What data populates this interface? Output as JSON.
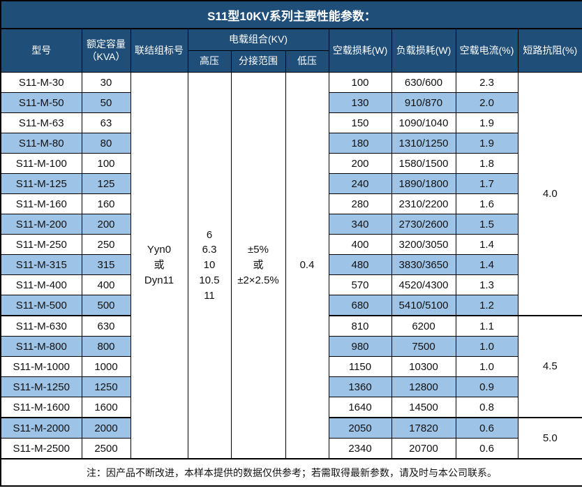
{
  "title": "S11型10KV系列主要性能参数：",
  "header": {
    "model": "型号",
    "capacity_line1": "额定容量",
    "capacity_line2": "（KVA）",
    "vector_group": "联结组标号",
    "voltage_combo": "电载组合(KV)",
    "hv": "高压",
    "tap_range": "分接范围",
    "lv": "低压",
    "no_load_loss": "空载损耗(W)",
    "load_loss": "负载损耗(W)",
    "no_load_current": "空载电流(%)",
    "impedance": "短路抗阻(%)"
  },
  "merged": {
    "vector_group_lines": [
      "Yyn0",
      "或",
      "Dyn11"
    ],
    "hv_lines": [
      "6",
      "6.3",
      "10",
      "10.5",
      "11"
    ],
    "tap_range_lines": [
      "±5%",
      "或",
      "±2×2.5%"
    ],
    "lv_value": "0.4"
  },
  "rows": [
    {
      "model": "S11-M-30",
      "capacity": "30",
      "no_load_loss": "100",
      "load_loss": "630/600",
      "no_load_current": "2.3"
    },
    {
      "model": "S11-M-50",
      "capacity": "50",
      "no_load_loss": "130",
      "load_loss": "910/870",
      "no_load_current": "2.0"
    },
    {
      "model": "S11-M-63",
      "capacity": "63",
      "no_load_loss": "150",
      "load_loss": "1090/1040",
      "no_load_current": "1.9"
    },
    {
      "model": "S11-M-80",
      "capacity": "80",
      "no_load_loss": "180",
      "load_loss": "1310/1250",
      "no_load_current": "1.9"
    },
    {
      "model": "S11-M-100",
      "capacity": "100",
      "no_load_loss": "200",
      "load_loss": "1580/1500",
      "no_load_current": "1.8"
    },
    {
      "model": "S11-M-125",
      "capacity": "125",
      "no_load_loss": "240",
      "load_loss": "1890/1800",
      "no_load_current": "1.7"
    },
    {
      "model": "S11-M-160",
      "capacity": "160",
      "no_load_loss": "280",
      "load_loss": "2310/2200",
      "no_load_current": "1.6"
    },
    {
      "model": "S11-M-200",
      "capacity": "200",
      "no_load_loss": "340",
      "load_loss": "2730/2600",
      "no_load_current": "1.5"
    },
    {
      "model": "S11-M-250",
      "capacity": "250",
      "no_load_loss": "400",
      "load_loss": "3200/3050",
      "no_load_current": "1.4"
    },
    {
      "model": "S11-M-315",
      "capacity": "315",
      "no_load_loss": "480",
      "load_loss": "3830/3650",
      "no_load_current": "1.4"
    },
    {
      "model": "S11-M-400",
      "capacity": "400",
      "no_load_loss": "570",
      "load_loss": "4520/4300",
      "no_load_current": "1.3"
    },
    {
      "model": "S11-M-500",
      "capacity": "500",
      "no_load_loss": "680",
      "load_loss": "5410/5100",
      "no_load_current": "1.2"
    },
    {
      "model": "S11-M-630",
      "capacity": "630",
      "no_load_loss": "810",
      "load_loss": "6200",
      "no_load_current": "1.1"
    },
    {
      "model": "S11-M-800",
      "capacity": "800",
      "no_load_loss": "980",
      "load_loss": "7500",
      "no_load_current": "1.0"
    },
    {
      "model": "S11-M-1000",
      "capacity": "1000",
      "no_load_loss": "1150",
      "load_loss": "10300",
      "no_load_current": "1.0"
    },
    {
      "model": "S11-M-1250",
      "capacity": "1250",
      "no_load_loss": "1360",
      "load_loss": "12800",
      "no_load_current": "0.9"
    },
    {
      "model": "S11-M-1600",
      "capacity": "1600",
      "no_load_loss": "1640",
      "load_loss": "14500",
      "no_load_current": "0.8"
    },
    {
      "model": "S11-M-2000",
      "capacity": "2000",
      "no_load_loss": "2050",
      "load_loss": "17820",
      "no_load_current": "0.6"
    },
    {
      "model": "S11-M-2500",
      "capacity": "2500",
      "no_load_loss": "2340",
      "load_loss": "20700",
      "no_load_current": "0.6"
    }
  ],
  "impedance_groups": [
    {
      "value": "4.0",
      "rowspan": 12
    },
    {
      "value": "4.5",
      "rowspan": 5
    },
    {
      "value": "5.0",
      "rowspan": 2
    }
  ],
  "footer_note": "注：因产品不断改进，本样本提供的数据仅供参考；若需取得最新参数，请及时与本公司联系。",
  "colors": {
    "header_bg": "#1F4E79",
    "header_text": "#FFFFFF",
    "row_alt_bg": "#9DC3E6",
    "border_color": "#000000",
    "page_bg": "#FFFFFF"
  }
}
